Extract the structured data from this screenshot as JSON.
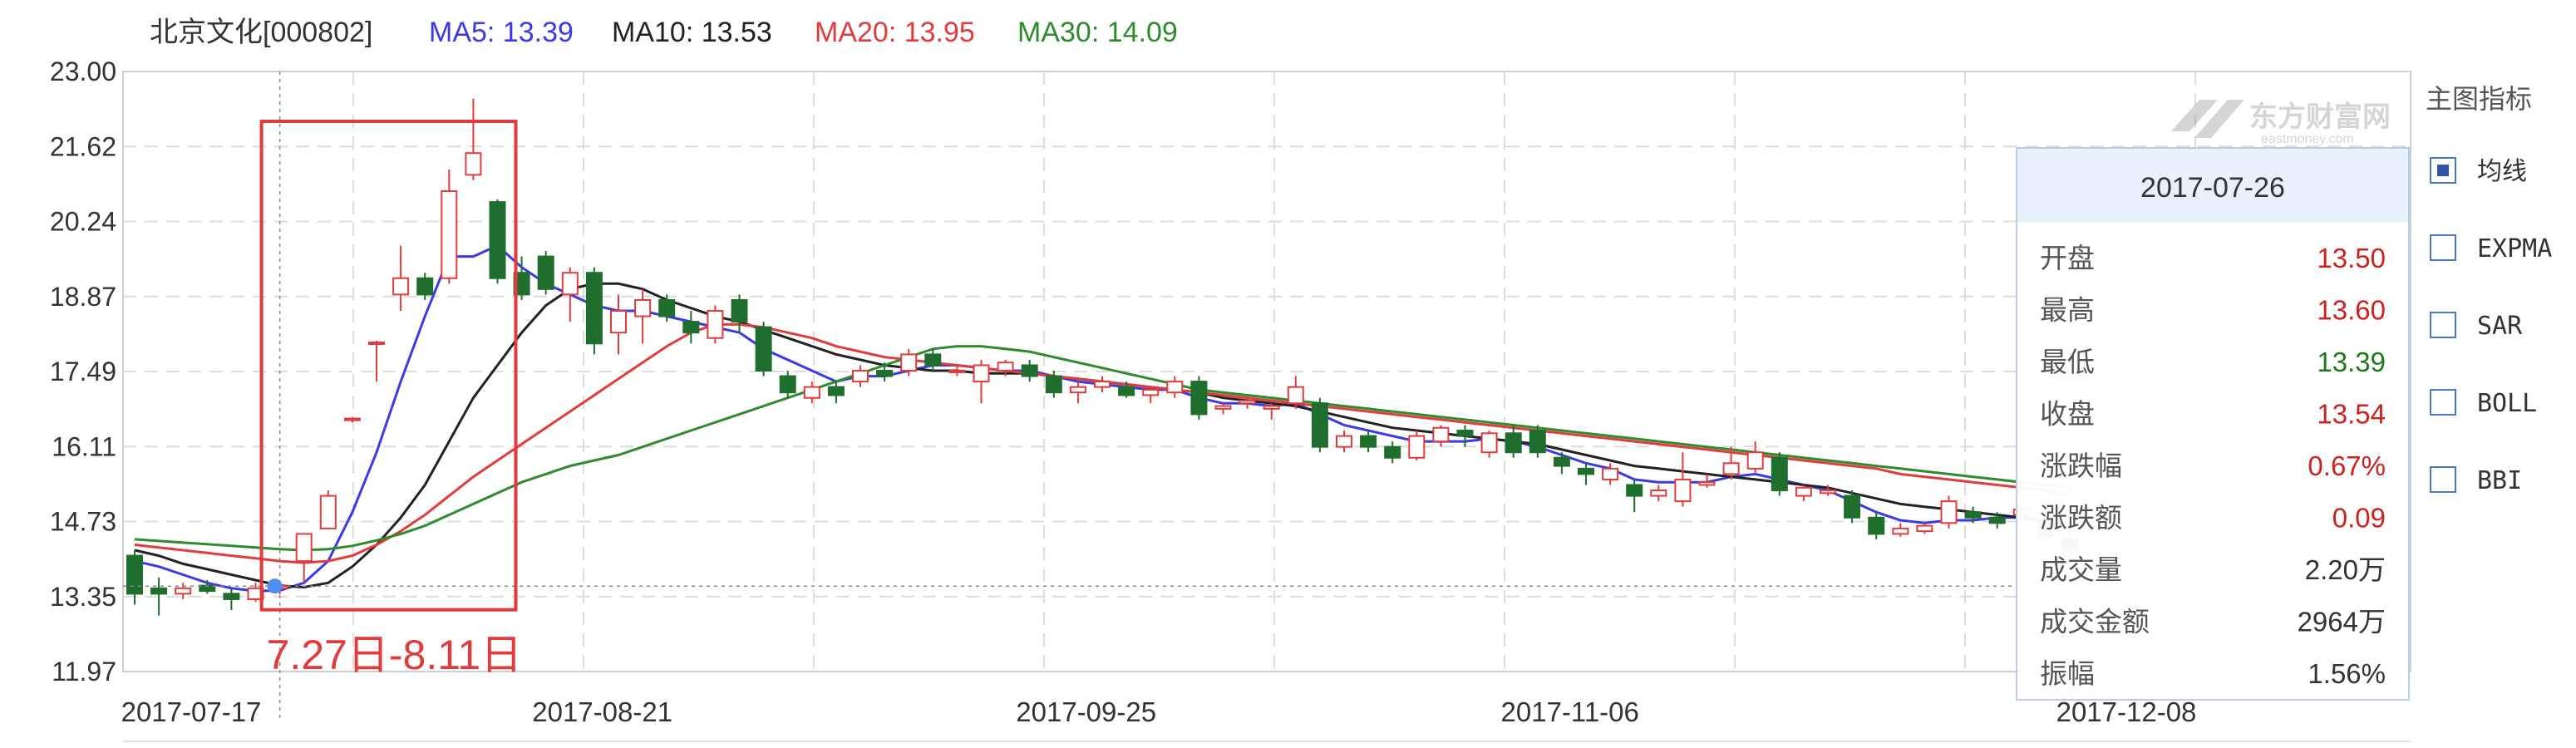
{
  "header": {
    "stock": "北京文化[000802]",
    "ma5": {
      "label": "MA5: 13.39",
      "color": "#3a3ae8"
    },
    "ma10": {
      "label": "MA10: 13.53",
      "color": "#222222"
    },
    "ma20": {
      "label": "MA20: 13.95",
      "color": "#e23b3b"
    },
    "ma30": {
      "label": "MA30: 14.09",
      "color": "#2e8b2e"
    }
  },
  "watermark": {
    "text": "东方财富网",
    "subtext": "eastmoney.com"
  },
  "annotation": {
    "text": "7.27日-8.11日"
  },
  "sidebar": {
    "title": "主图指标",
    "items": [
      {
        "label": "均线",
        "checked": true
      },
      {
        "label": "EXPMA",
        "checked": false
      },
      {
        "label": "SAR",
        "checked": false
      },
      {
        "label": "BOLL",
        "checked": false
      },
      {
        "label": "BBI",
        "checked": false
      }
    ]
  },
  "tooltip": {
    "date": "2017-07-26",
    "rows": [
      {
        "label": "开盘",
        "value": "13.50",
        "color": "#d0201a"
      },
      {
        "label": "最高",
        "value": "13.60",
        "color": "#d0201a"
      },
      {
        "label": "最低",
        "value": "13.39",
        "color": "#1a7a1a"
      },
      {
        "label": "收盘",
        "value": "13.54",
        "color": "#d0201a"
      },
      {
        "label": "涨跌幅",
        "value": "0.67%",
        "color": "#d0201a"
      },
      {
        "label": "涨跌额",
        "value": "0.09",
        "color": "#d0201a"
      },
      {
        "label": "成交量",
        "value": "2.20万",
        "color": "#333333"
      },
      {
        "label": "成交金额",
        "value": "2964万",
        "color": "#333333"
      },
      {
        "label": "振幅",
        "value": "1.56%",
        "color": "#333333"
      }
    ]
  },
  "chart_data": {
    "type": "candlestick",
    "ylim": [
      11.97,
      23.0
    ],
    "y_ticks": [
      "23.00",
      "21.62",
      "20.24",
      "18.87",
      "17.49",
      "16.11",
      "14.73",
      "13.35",
      "11.97"
    ],
    "x_tick_labels": [
      {
        "label": "2017-07-17",
        "index": 0
      },
      {
        "label": "2017-08-21",
        "index": 17
      },
      {
        "label": "2017-09-25",
        "index": 37
      },
      {
        "label": "2017-11-06",
        "index": 57
      },
      {
        "label": "2017-12-08",
        "index": 80
      }
    ],
    "highlight_range": [
      6,
      15
    ],
    "crosshair": {
      "index": 6,
      "price": 13.54
    },
    "up_color": "#e23b3b",
    "down_color": "#1f6e2e",
    "candles": [
      [
        14.1,
        14.2,
        13.2,
        13.4
      ],
      [
        13.5,
        13.7,
        13.0,
        13.4
      ],
      [
        13.4,
        13.6,
        13.3,
        13.5
      ],
      [
        13.55,
        13.65,
        13.4,
        13.45
      ],
      [
        13.4,
        13.5,
        13.1,
        13.3
      ],
      [
        13.3,
        13.6,
        13.25,
        13.5
      ],
      [
        13.5,
        13.6,
        13.39,
        13.54
      ],
      [
        14.0,
        14.5,
        13.6,
        14.5
      ],
      [
        14.6,
        15.3,
        14.6,
        15.2
      ],
      [
        16.6,
        16.65,
        16.55,
        16.62
      ],
      [
        18.0,
        18.05,
        17.3,
        18.02
      ],
      [
        18.9,
        19.8,
        18.6,
        19.2
      ],
      [
        19.2,
        19.3,
        18.8,
        18.9
      ],
      [
        19.2,
        21.2,
        19.1,
        20.8
      ],
      [
        21.1,
        22.5,
        21.0,
        21.5
      ],
      [
        20.6,
        20.65,
        19.1,
        19.2
      ],
      [
        19.3,
        19.6,
        18.8,
        18.9
      ],
      [
        19.6,
        19.7,
        18.9,
        19.0
      ],
      [
        18.9,
        19.4,
        18.4,
        19.3
      ],
      [
        19.3,
        19.4,
        17.8,
        18.0
      ],
      [
        18.2,
        18.9,
        17.8,
        18.6
      ],
      [
        18.5,
        19.0,
        18.0,
        18.8
      ],
      [
        18.8,
        18.9,
        18.4,
        18.5
      ],
      [
        18.4,
        18.6,
        18.0,
        18.2
      ],
      [
        18.1,
        18.7,
        18.0,
        18.6
      ],
      [
        18.8,
        18.9,
        18.2,
        18.4
      ],
      [
        18.3,
        18.4,
        17.4,
        17.5
      ],
      [
        17.4,
        17.5,
        17.0,
        17.1
      ],
      [
        17.0,
        17.3,
        16.9,
        17.2
      ],
      [
        17.2,
        17.3,
        16.9,
        17.05
      ],
      [
        17.3,
        17.6,
        17.2,
        17.5
      ],
      [
        17.5,
        17.65,
        17.3,
        17.4
      ],
      [
        17.5,
        17.9,
        17.4,
        17.8
      ],
      [
        17.8,
        17.9,
        17.5,
        17.6
      ],
      [
        17.5,
        17.6,
        17.4,
        17.5
      ],
      [
        17.3,
        17.7,
        16.9,
        17.6
      ],
      [
        17.5,
        17.7,
        17.4,
        17.65
      ],
      [
        17.6,
        17.7,
        17.3,
        17.4
      ],
      [
        17.4,
        17.5,
        17.0,
        17.1
      ],
      [
        17.1,
        17.3,
        16.9,
        17.2
      ],
      [
        17.2,
        17.4,
        17.1,
        17.3
      ],
      [
        17.2,
        17.3,
        17.0,
        17.05
      ],
      [
        17.05,
        17.2,
        16.9,
        17.15
      ],
      [
        17.1,
        17.4,
        17.0,
        17.3
      ],
      [
        17.3,
        17.4,
        16.6,
        16.7
      ],
      [
        16.8,
        16.9,
        16.7,
        16.85
      ],
      [
        16.9,
        17.0,
        16.8,
        16.95
      ],
      [
        16.8,
        16.9,
        16.6,
        16.85
      ],
      [
        16.9,
        17.4,
        16.8,
        17.2
      ],
      [
        16.9,
        17.0,
        16.0,
        16.1
      ],
      [
        16.1,
        16.4,
        16.0,
        16.3
      ],
      [
        16.3,
        16.4,
        16.0,
        16.1
      ],
      [
        16.1,
        16.2,
        15.8,
        15.9
      ],
      [
        15.9,
        16.4,
        15.85,
        16.3
      ],
      [
        16.2,
        16.5,
        16.1,
        16.45
      ],
      [
        16.4,
        16.5,
        16.1,
        16.3
      ],
      [
        16.0,
        16.4,
        15.9,
        16.35
      ],
      [
        16.35,
        16.5,
        15.9,
        16.0
      ],
      [
        16.4,
        16.5,
        15.9,
        16.0
      ],
      [
        15.9,
        16.0,
        15.6,
        15.75
      ],
      [
        15.7,
        15.8,
        15.4,
        15.6
      ],
      [
        15.5,
        15.8,
        15.4,
        15.7
      ],
      [
        15.4,
        15.5,
        14.9,
        15.2
      ],
      [
        15.2,
        15.4,
        15.1,
        15.3
      ],
      [
        15.1,
        16.0,
        15.0,
        15.5
      ],
      [
        15.4,
        15.6,
        15.35,
        15.45
      ],
      [
        15.6,
        16.1,
        15.5,
        15.8
      ],
      [
        15.7,
        16.2,
        15.6,
        16.0
      ],
      [
        15.9,
        16.0,
        15.2,
        15.3
      ],
      [
        15.2,
        15.4,
        15.1,
        15.35
      ],
      [
        15.25,
        15.4,
        15.2,
        15.3
      ],
      [
        15.2,
        15.3,
        14.7,
        14.8
      ],
      [
        14.8,
        14.9,
        14.4,
        14.5
      ],
      [
        14.5,
        14.7,
        14.45,
        14.6
      ],
      [
        14.55,
        14.7,
        14.5,
        14.65
      ],
      [
        14.7,
        15.2,
        14.6,
        15.1
      ],
      [
        14.9,
        15.0,
        14.7,
        14.8
      ],
      [
        14.8,
        14.9,
        14.6,
        14.7
      ],
      [
        14.85,
        15.0,
        14.7,
        14.95
      ],
      [
        14.7,
        14.8,
        14.3,
        14.45
      ],
      [
        14.4,
        14.5,
        14.1,
        14.2
      ]
    ],
    "series": [
      {
        "name": "MA5",
        "color": "#3a3ae8",
        "values": [
          14.0,
          13.9,
          13.75,
          13.6,
          13.5,
          13.45,
          13.46,
          13.6,
          14.0,
          14.9,
          16.0,
          17.3,
          18.5,
          19.6,
          19.6,
          19.8,
          19.4,
          19.1,
          18.9,
          18.7,
          18.6,
          18.6,
          18.5,
          18.4,
          18.3,
          18.2,
          17.9,
          17.7,
          17.5,
          17.3,
          17.4,
          17.4,
          17.5,
          17.6,
          17.6,
          17.55,
          17.5,
          17.5,
          17.4,
          17.3,
          17.25,
          17.2,
          17.15,
          17.15,
          17.0,
          16.9,
          16.9,
          16.85,
          16.9,
          16.7,
          16.5,
          16.4,
          16.3,
          16.2,
          16.2,
          16.2,
          16.25,
          16.2,
          16.1,
          15.95,
          15.8,
          15.7,
          15.5,
          15.45,
          15.45,
          15.45,
          15.55,
          15.6,
          15.5,
          15.4,
          15.3,
          15.1,
          14.9,
          14.75,
          14.7,
          14.75,
          14.75,
          14.8,
          14.8,
          14.7,
          14.55
        ]
      },
      {
        "name": "MA10",
        "color": "#222222",
        "values": [
          14.2,
          14.1,
          13.95,
          13.85,
          13.75,
          13.65,
          13.55,
          13.52,
          13.6,
          13.9,
          14.3,
          14.8,
          15.4,
          16.2,
          17.0,
          17.6,
          18.2,
          18.7,
          19.0,
          19.1,
          19.1,
          19.0,
          18.8,
          18.65,
          18.5,
          18.4,
          18.25,
          18.1,
          17.95,
          17.8,
          17.7,
          17.6,
          17.55,
          17.5,
          17.5,
          17.45,
          17.45,
          17.45,
          17.4,
          17.35,
          17.3,
          17.25,
          17.2,
          17.15,
          17.1,
          17.0,
          16.95,
          16.9,
          16.85,
          16.75,
          16.65,
          16.55,
          16.45,
          16.4,
          16.35,
          16.3,
          16.25,
          16.2,
          16.15,
          16.05,
          15.95,
          15.85,
          15.75,
          15.7,
          15.65,
          15.6,
          15.55,
          15.5,
          15.45,
          15.4,
          15.35,
          15.25,
          15.15,
          15.05,
          15.0,
          14.95,
          14.9,
          14.85,
          14.8,
          14.75,
          14.65
        ]
      },
      {
        "name": "MA20",
        "color": "#e23b3b",
        "values": [
          14.3,
          14.25,
          14.2,
          14.15,
          14.1,
          14.05,
          14.0,
          13.97,
          14.0,
          14.1,
          14.3,
          14.55,
          14.85,
          15.2,
          15.55,
          15.85,
          16.15,
          16.45,
          16.75,
          17.05,
          17.35,
          17.65,
          17.95,
          18.2,
          18.35,
          18.35,
          18.3,
          18.2,
          18.1,
          17.95,
          17.85,
          17.75,
          17.7,
          17.65,
          17.6,
          17.55,
          17.5,
          17.45,
          17.4,
          17.35,
          17.3,
          17.25,
          17.2,
          17.15,
          17.1,
          17.05,
          17.0,
          16.95,
          16.9,
          16.85,
          16.8,
          16.75,
          16.7,
          16.65,
          16.6,
          16.55,
          16.5,
          16.45,
          16.4,
          16.35,
          16.3,
          16.25,
          16.2,
          16.15,
          16.1,
          16.05,
          16.0,
          15.95,
          15.9,
          15.85,
          15.8,
          15.75,
          15.7,
          15.6,
          15.55,
          15.5,
          15.45,
          15.4,
          15.35,
          15.3,
          15.2
        ]
      },
      {
        "name": "MA30",
        "color": "#2e8b2e",
        "values": [
          14.4,
          14.37,
          14.34,
          14.31,
          14.28,
          14.25,
          14.22,
          14.2,
          14.22,
          14.28,
          14.38,
          14.5,
          14.65,
          14.85,
          15.05,
          15.25,
          15.45,
          15.6,
          15.75,
          15.85,
          15.95,
          16.1,
          16.25,
          16.4,
          16.55,
          16.7,
          16.85,
          17.0,
          17.15,
          17.3,
          17.45,
          17.6,
          17.75,
          17.9,
          17.95,
          17.95,
          17.9,
          17.85,
          17.75,
          17.65,
          17.55,
          17.45,
          17.35,
          17.25,
          17.15,
          17.1,
          17.05,
          17.0,
          16.95,
          16.9,
          16.85,
          16.8,
          16.75,
          16.7,
          16.65,
          16.6,
          16.55,
          16.5,
          16.45,
          16.4,
          16.35,
          16.3,
          16.25,
          16.2,
          16.15,
          16.1,
          16.05,
          16.0,
          15.95,
          15.9,
          15.85,
          15.8,
          15.75,
          15.7,
          15.65,
          15.6,
          15.55,
          15.5,
          15.45,
          15.4,
          15.35
        ]
      }
    ]
  }
}
